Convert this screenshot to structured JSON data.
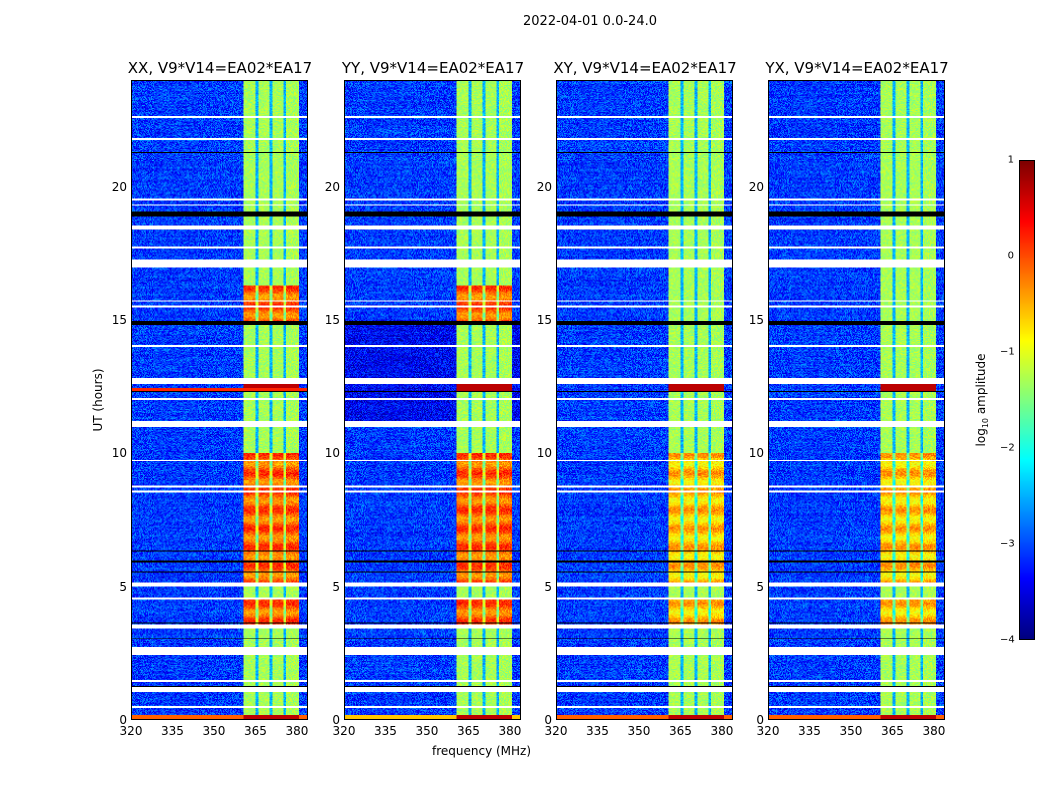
{
  "chart_data": {
    "type": "heatmap",
    "title": "2022-04-01 0.0-24.0",
    "xlabel": "frequency (MHz)",
    "ylabel": "UT (hours)",
    "xlim": [
      320,
      384
    ],
    "ylim": [
      0,
      24
    ],
    "xticks": [
      320,
      335,
      350,
      365,
      380
    ],
    "yticks": [
      0,
      5,
      10,
      15,
      20
    ],
    "panels": [
      {
        "title": "XX, V9*V14=EA02*EA17",
        "strong": true
      },
      {
        "title": "YY, V9*V14=EA02*EA17",
        "strong": true
      },
      {
        "title": "XY, V9*V14=EA02*EA17",
        "strong": false
      },
      {
        "title": "YX, V9*V14=EA02*EA17",
        "strong": false
      }
    ],
    "background_log_amp": -3.1,
    "rfi_band_mhz": [
      361,
      381
    ],
    "rfi_subband_gaps_mhz": [
      365.8,
      370.8,
      375.8
    ],
    "rfi_log_amp": -1.3,
    "rfi_burst_periods_hours": [
      [
        3.5,
        4.5
      ],
      [
        5.1,
        10.0
      ],
      [
        14.9,
        16.3
      ]
    ],
    "rfi_burst_log_amp": -0.1,
    "flagged_hours_white": [
      [
        0.4,
        0.1
      ],
      [
        1.0,
        0.25
      ],
      [
        1.4,
        0.06
      ],
      [
        2.4,
        0.3
      ],
      [
        3.4,
        0.15
      ],
      [
        4.5,
        0.06
      ],
      [
        5.0,
        0.15
      ],
      [
        8.5,
        0.1
      ],
      [
        8.7,
        0.06
      ],
      [
        9.7,
        0.06
      ],
      [
        11.0,
        0.22
      ],
      [
        12.0,
        0.06
      ],
      [
        12.6,
        0.22
      ],
      [
        14.0,
        0.06
      ],
      [
        15.5,
        0.06
      ],
      [
        15.7,
        0.06
      ],
      [
        17.0,
        0.3
      ],
      [
        17.7,
        0.06
      ],
      [
        18.4,
        0.15
      ],
      [
        19.3,
        0.06
      ],
      [
        19.5,
        0.06
      ],
      [
        21.8,
        0.06
      ],
      [
        22.6,
        0.1
      ]
    ],
    "flagged_hours_black": [
      [
        1.2,
        0.05
      ],
      [
        3.0,
        0.05
      ],
      [
        3.6,
        0.05
      ],
      [
        5.5,
        0.05
      ],
      [
        5.9,
        0.05
      ],
      [
        6.3,
        0.05
      ],
      [
        12.3,
        0.05
      ],
      [
        14.8,
        0.15
      ],
      [
        18.9,
        0.2
      ],
      [
        21.3,
        0.05
      ]
    ],
    "colorbar": {
      "label": "log10 amplitude",
      "label_main": "log",
      "label_sub": "10",
      "label_rest": " amplitude",
      "range": [
        -4,
        1
      ],
      "ticks": [
        "1",
        "0",
        "−1",
        "−2",
        "−3",
        "−4"
      ],
      "colormap": "jet"
    }
  }
}
